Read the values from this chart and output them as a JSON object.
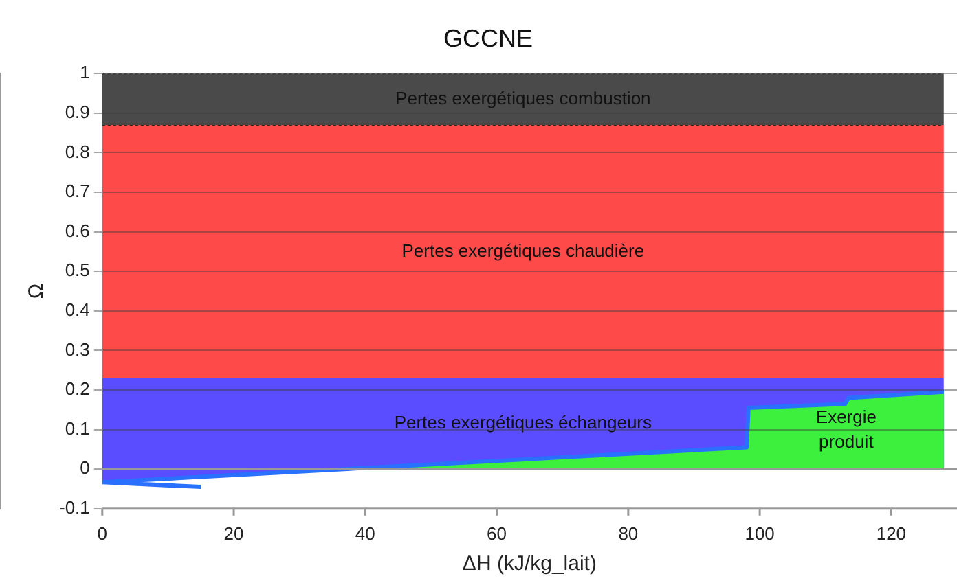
{
  "chart_data": {
    "type": "area",
    "title": "GCCNE",
    "xlabel": "ΔH (kJ/kg_lait)",
    "ylabel": "Ω",
    "xlim": [
      0,
      130
    ],
    "xticks": [
      0,
      20,
      40,
      60,
      80,
      100,
      120
    ],
    "ylim": [
      -0.1,
      1
    ],
    "yticks": [
      -0.1,
      0,
      0.1,
      0.2,
      0.3,
      0.4,
      0.5,
      0.6,
      0.7,
      0.8,
      0.9,
      1
    ],
    "grid": "y",
    "legend": false,
    "series": [
      {
        "name": "Pertes exergétiques échangeurs",
        "color": "#5a4cff",
        "x": [
          0,
          128
        ],
        "values": [
          0.23,
          0.23
        ]
      },
      {
        "name": "Pertes exergétiques chaudière",
        "color": "#ff4a4a",
        "line_style": "dotted",
        "x": [
          0,
          128
        ],
        "values": [
          0.87,
          0.87
        ]
      },
      {
        "name": "Pertes exergétiques combustion",
        "color": "#4a4a4a",
        "line_style": "dotted",
        "x": [
          0,
          128
        ],
        "values": [
          1,
          1
        ]
      },
      {
        "name": "Exergie produit",
        "color": "#3ef03e",
        "x": [
          0,
          98,
          98.3,
          113,
          113.5,
          128
        ],
        "values": [
          -0.033,
          0.055,
          0.155,
          0.165,
          0.18,
          0.195
        ]
      },
      {
        "type": "line",
        "color": "#2a70ff",
        "x": [
          15,
          0,
          98,
          98.3,
          113,
          113.5,
          128
        ],
        "values": [
          -0.045,
          -0.033,
          0.055,
          0.155,
          0.165,
          0.18,
          0.195
        ]
      }
    ]
  }
}
